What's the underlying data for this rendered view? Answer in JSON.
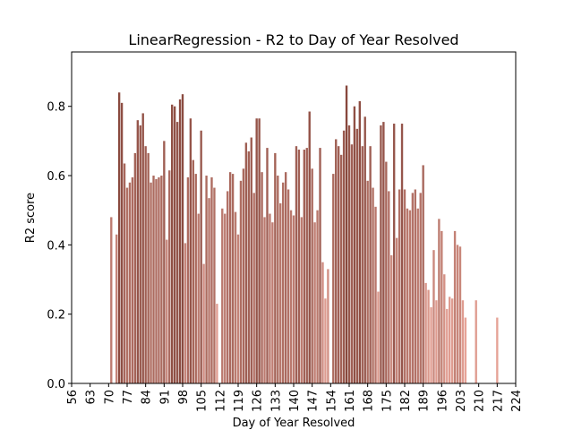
{
  "chart_data": {
    "type": "bar",
    "title": "LinearRegression - R2 to Day of Year Resolved",
    "xlabel": "Day of Year Resolved",
    "ylabel": "R2 score",
    "x": [
      71,
      73,
      74,
      75,
      76,
      77,
      78,
      79,
      80,
      81,
      82,
      83,
      84,
      85,
      86,
      87,
      88,
      89,
      90,
      91,
      92,
      93,
      94,
      95,
      96,
      97,
      98,
      99,
      100,
      101,
      102,
      103,
      104,
      105,
      106,
      107,
      108,
      109,
      110,
      111,
      113,
      114,
      115,
      116,
      117,
      118,
      119,
      120,
      121,
      122,
      123,
      124,
      125,
      126,
      127,
      128,
      129,
      130,
      131,
      132,
      133,
      134,
      135,
      136,
      137,
      138,
      139,
      140,
      141,
      142,
      143,
      144,
      145,
      146,
      147,
      148,
      149,
      150,
      151,
      152,
      153,
      155,
      156,
      157,
      158,
      159,
      160,
      161,
      162,
      163,
      164,
      165,
      166,
      167,
      168,
      169,
      170,
      171,
      172,
      173,
      174,
      175,
      176,
      177,
      178,
      179,
      180,
      181,
      182,
      183,
      184,
      185,
      186,
      187,
      188,
      189,
      190,
      191,
      192,
      193,
      194,
      195,
      196,
      197,
      198,
      199,
      200,
      201,
      202,
      203,
      204,
      205,
      209,
      217
    ],
    "values": [
      0.48,
      0.43,
      0.84,
      0.81,
      0.635,
      0.565,
      0.58,
      0.595,
      0.665,
      0.76,
      0.745,
      0.78,
      0.685,
      0.665,
      0.58,
      0.6,
      0.59,
      0.595,
      0.6,
      0.7,
      0.415,
      0.615,
      0.805,
      0.8,
      0.755,
      0.82,
      0.835,
      0.405,
      0.595,
      0.765,
      0.645,
      0.605,
      0.49,
      0.73,
      0.345,
      0.6,
      0.535,
      0.595,
      0.565,
      0.23,
      0.505,
      0.49,
      0.555,
      0.61,
      0.605,
      0.495,
      0.43,
      0.585,
      0.62,
      0.695,
      0.67,
      0.71,
      0.55,
      0.765,
      0.765,
      0.61,
      0.48,
      0.68,
      0.49,
      0.465,
      0.665,
      0.6,
      0.52,
      0.58,
      0.61,
      0.56,
      0.5,
      0.485,
      0.685,
      0.675,
      0.48,
      0.675,
      0.68,
      0.785,
      0.62,
      0.465,
      0.5,
      0.68,
      0.35,
      0.245,
      0.33,
      0.605,
      0.705,
      0.685,
      0.66,
      0.73,
      0.86,
      0.745,
      0.69,
      0.8,
      0.735,
      0.815,
      0.685,
      0.77,
      0.585,
      0.685,
      0.565,
      0.51,
      0.265,
      0.745,
      0.755,
      0.64,
      0.555,
      0.37,
      0.75,
      0.42,
      0.56,
      0.75,
      0.56,
      0.505,
      0.5,
      0.55,
      0.56,
      0.505,
      0.55,
      0.63,
      0.29,
      0.27,
      0.22,
      0.385,
      0.24,
      0.475,
      0.44,
      0.315,
      0.215,
      0.25,
      0.245,
      0.44,
      0.4,
      0.395,
      0.24,
      0.19,
      0.24,
      0.19
    ],
    "colormap": [
      "#e3998c",
      "#7a3327"
    ],
    "xlim": [
      56,
      224
    ],
    "xticks": [
      56,
      63,
      70,
      77,
      84,
      91,
      98,
      105,
      112,
      119,
      126,
      133,
      140,
      147,
      154,
      161,
      168,
      175,
      182,
      189,
      196,
      203,
      210,
      217,
      224
    ],
    "ylim": [
      0,
      0.957
    ],
    "yticks": [
      {
        "value": 0,
        "label": "0.0"
      },
      0.2,
      0.4,
      0.6,
      0.8
    ]
  }
}
